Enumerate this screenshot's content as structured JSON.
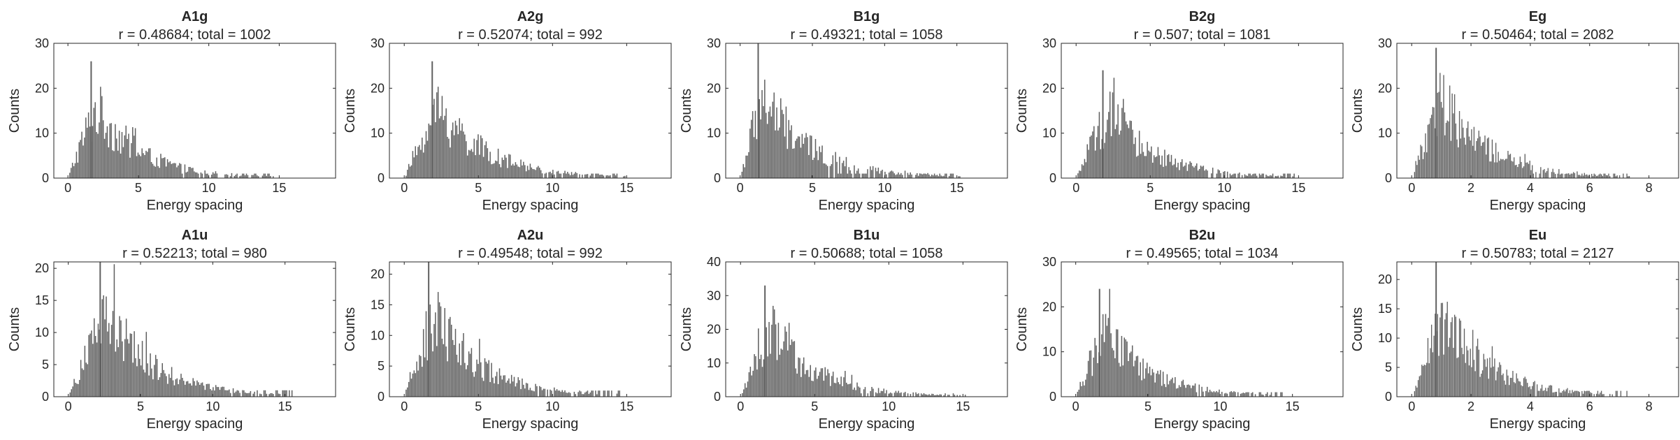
{
  "bar_color": "#606060",
  "axis_color": "#262626",
  "chart_data": [
    {
      "type": "bar",
      "title": "A1g",
      "subtitle": "r = 0.48684; total = 1002",
      "xlabel": "Energy spacing",
      "ylabel": "Counts",
      "xlim": [
        -1,
        19
      ],
      "ylim": [
        0,
        30
      ],
      "xticks": [
        0,
        5,
        10,
        15
      ],
      "yticks": [
        0,
        10,
        20,
        30
      ],
      "peak": 26,
      "mode": 2.0,
      "decay": 3.2,
      "count": 1002
    },
    {
      "type": "bar",
      "title": "A2g",
      "subtitle": "r = 0.52074; total = 992",
      "xlabel": "Energy spacing",
      "ylabel": "Counts",
      "xlim": [
        -1,
        18
      ],
      "ylim": [
        0,
        30
      ],
      "xticks": [
        0,
        5,
        10,
        15
      ],
      "yticks": [
        0,
        10,
        20,
        30
      ],
      "peak": 26,
      "mode": 2.3,
      "decay": 3.3,
      "count": 992
    },
    {
      "type": "bar",
      "title": "B1g",
      "subtitle": "r = 0.49321; total = 1058",
      "xlabel": "Energy spacing",
      "ylabel": "Counts",
      "xlim": [
        -1,
        18.5
      ],
      "ylim": [
        0,
        30
      ],
      "xticks": [
        0,
        5,
        10,
        15
      ],
      "yticks": [
        0,
        10,
        20,
        30
      ],
      "peak": 30,
      "mode": 1.5,
      "decay": 3.4,
      "count": 1058
    },
    {
      "type": "bar",
      "title": "B2g",
      "subtitle": "r = 0.507; total = 1081",
      "xlabel": "Energy spacing",
      "ylabel": "Counts",
      "xlim": [
        -1,
        18
      ],
      "ylim": [
        0,
        30
      ],
      "xticks": [
        0,
        5,
        10,
        15
      ],
      "yticks": [
        0,
        10,
        20,
        30
      ],
      "peak": 24,
      "mode": 2.2,
      "decay": 3.2,
      "count": 1081
    },
    {
      "type": "bar",
      "title": "Eg",
      "subtitle": "r = 0.50464; total = 2082",
      "xlabel": "Energy spacing",
      "ylabel": "Counts",
      "xlim": [
        -0.5,
        9
      ],
      "ylim": [
        0,
        30
      ],
      "xticks": [
        0,
        2,
        4,
        6,
        8
      ],
      "yticks": [
        0,
        10,
        20,
        30
      ],
      "peak": 29,
      "mode": 1.0,
      "decay": 1.6,
      "count": 2082
    },
    {
      "type": "bar",
      "title": "A1u",
      "subtitle": "r = 0.52213; total = 980",
      "xlabel": "Energy spacing",
      "ylabel": "Counts",
      "xlim": [
        -1,
        18.5
      ],
      "ylim": [
        0,
        21
      ],
      "xticks": [
        0,
        5,
        10,
        15
      ],
      "yticks": [
        0,
        5,
        10,
        15,
        20
      ],
      "peak": 21,
      "mode": 2.7,
      "decay": 3.3,
      "count": 980
    },
    {
      "type": "bar",
      "title": "A2u",
      "subtitle": "r = 0.49548; total = 992",
      "xlabel": "Energy spacing",
      "ylabel": "Counts",
      "xlim": [
        -1,
        18
      ],
      "ylim": [
        0,
        22
      ],
      "xticks": [
        0,
        5,
        10,
        15
      ],
      "yticks": [
        0,
        5,
        10,
        15,
        20
      ],
      "peak": 22,
      "mode": 2.0,
      "decay": 3.2,
      "count": 992
    },
    {
      "type": "bar",
      "title": "B1u",
      "subtitle": "r = 0.50688; total = 1058",
      "xlabel": "Energy spacing",
      "ylabel": "Counts",
      "xlim": [
        -1,
        18
      ],
      "ylim": [
        0,
        40
      ],
      "xticks": [
        0,
        5,
        10,
        15
      ],
      "yticks": [
        0,
        10,
        20,
        30,
        40
      ],
      "peak": 33,
      "mode": 2.0,
      "decay": 3.2,
      "count": 1058
    },
    {
      "type": "bar",
      "title": "B2u",
      "subtitle": "r = 0.49565; total = 1034",
      "xlabel": "Energy spacing",
      "ylabel": "Counts",
      "xlim": [
        -1,
        18.5
      ],
      "ylim": [
        0,
        30
      ],
      "xticks": [
        0,
        5,
        10,
        15
      ],
      "yticks": [
        0,
        10,
        20,
        30
      ],
      "peak": 24,
      "mode": 2.0,
      "decay": 3.2,
      "count": 1034
    },
    {
      "type": "bar",
      "title": "Eu",
      "subtitle": "r = 0.50783; total = 2127",
      "xlabel": "Energy spacing",
      "ylabel": "Counts",
      "xlim": [
        -0.5,
        9
      ],
      "ylim": [
        0,
        23
      ],
      "xticks": [
        0,
        2,
        4,
        6,
        8
      ],
      "yticks": [
        0,
        5,
        10,
        15,
        20
      ],
      "peak": 23,
      "mode": 1.0,
      "decay": 1.6,
      "count": 2127
    }
  ]
}
